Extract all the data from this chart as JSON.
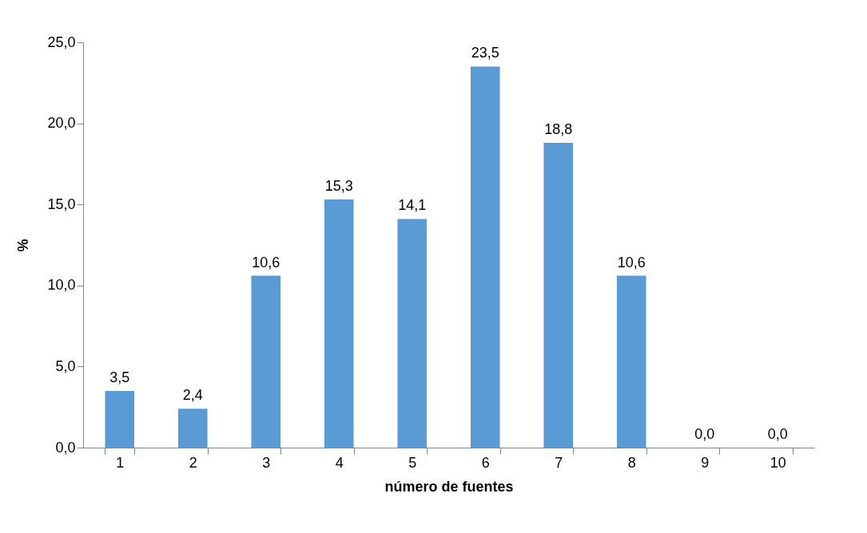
{
  "chart_data": {
    "type": "bar",
    "xlabel": "número de fuentes",
    "ylabel": "%",
    "categories": [
      "1",
      "2",
      "3",
      "4",
      "5",
      "6",
      "7",
      "8",
      "9",
      "10"
    ],
    "values": [
      3.5,
      2.4,
      10.6,
      15.3,
      14.1,
      23.5,
      18.8,
      10.6,
      0.0,
      0.0
    ],
    "value_labels": [
      "3,5",
      "2,4",
      "10,6",
      "15,3",
      "14,1",
      "23,5",
      "18,8",
      "10,6",
      "0,0",
      "0,0"
    ],
    "color": "#5b9bd5",
    "ylim": [
      0,
      25
    ],
    "yticks": [
      {
        "value": 0,
        "label": "0,0"
      },
      {
        "value": 5,
        "label": "5,0"
      },
      {
        "value": 10,
        "label": "10,0"
      },
      {
        "value": 15,
        "label": "15,0"
      },
      {
        "value": 20,
        "label": "20,0"
      },
      {
        "value": 25,
        "label": "25,0"
      }
    ],
    "grid": false
  }
}
